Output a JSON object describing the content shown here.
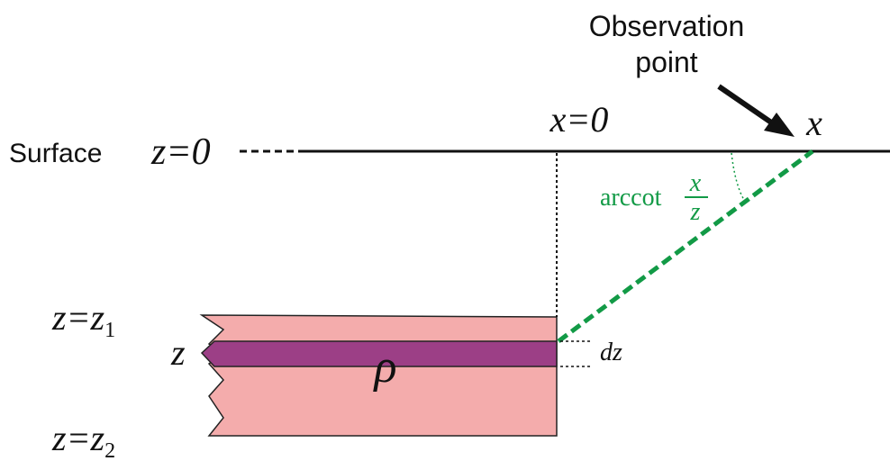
{
  "labels": {
    "observation_line1": "Observation",
    "observation_line2": "point",
    "x_origin": "x=0",
    "x_point": "x",
    "surface_word": "Surface",
    "surface_eq": "z=0",
    "angle_func": "arccot",
    "angle_num": "x",
    "angle_den": "z",
    "top_var": "z=z",
    "top_sub": "1",
    "layer_depth": "z",
    "bottom_var": "z=z",
    "bottom_sub": "2",
    "density": "ρ",
    "thickness": "dz"
  },
  "colors": {
    "slab": "#f4acac",
    "layer": "#9c3f86",
    "angle_line": "#129a46",
    "ink": "#111111"
  }
}
